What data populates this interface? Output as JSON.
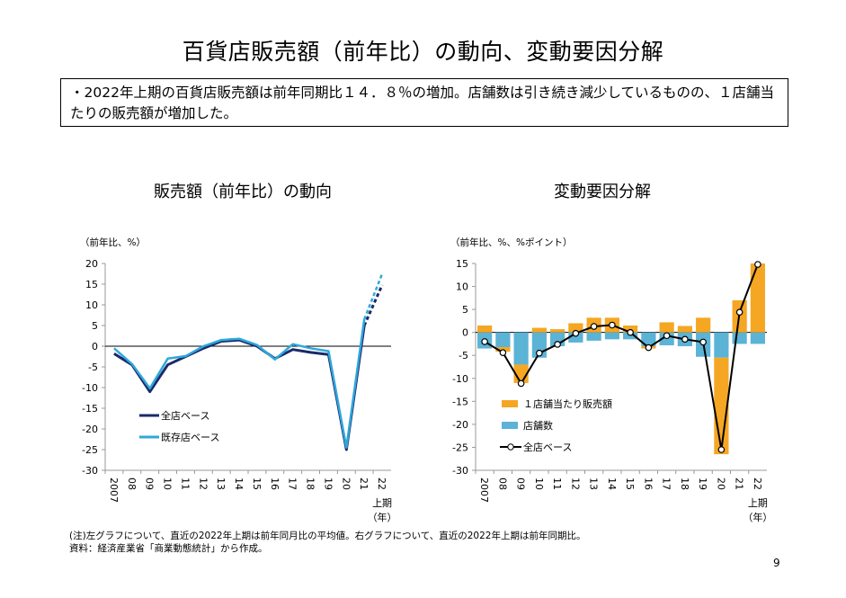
{
  "title": "百貨店販売額（前年比）の動向、変動要因分解",
  "summary": "・2022年上期の百貨店販売額は前年同期比１４．８％の増加。店舗数は引き続き減少しているものの、１店舗当たりの販売額が増加した。",
  "footnote1": "(注)左グラフについて、直近の2022年上期は前年同月比の平均値。右グラフについて、直近の2022年上期は前年同期比。",
  "footnote2": "資料：経済産業省「商業動態統計」から作成。",
  "page_number": "9",
  "colors": {
    "all_store": "#1b2a6b",
    "existing": "#2ea8dc",
    "per_store": "#f5a623",
    "store_count": "#5bb3d6",
    "zero_line": "#000000"
  },
  "chart_data": [
    {
      "type": "line",
      "title": "販売額（前年比）の動向",
      "ylabel": "（前年比、%）",
      "ylim": [
        -30,
        20
      ],
      "yticks": [
        "20",
        "15",
        "10",
        "5",
        "0",
        "-5",
        "-10",
        "-15",
        "-20",
        "-25",
        "-30"
      ],
      "yticks_values": [
        20,
        15,
        10,
        5,
        0,
        -5,
        -10,
        -15,
        -20,
        -25,
        -30
      ],
      "categories": [
        "2007",
        "08",
        "09",
        "10",
        "11",
        "12",
        "13",
        "14",
        "15",
        "16",
        "17",
        "18",
        "19",
        "20",
        "21",
        "22"
      ],
      "xlabel_extra": "上期",
      "xlabel_unit": "（年）",
      "series": [
        {
          "name": "全店ベース",
          "values": [
            -1.8,
            -4.5,
            -11.0,
            -4.5,
            -2.5,
            -0.5,
            1.2,
            1.5,
            0.0,
            -3.0,
            -0.8,
            -1.5,
            -2.0,
            -25.0,
            5.0,
            14.8
          ]
        },
        {
          "name": "既存店ベース",
          "values": [
            -0.5,
            -4.3,
            -10.2,
            -3.0,
            -2.4,
            0.0,
            1.5,
            1.8,
            0.3,
            -3.2,
            0.5,
            -0.5,
            -1.2,
            -24.5,
            6.5,
            17.5
          ]
        }
      ],
      "dashed_segment": "21-22"
    },
    {
      "type": "bar+line",
      "title": "変動要因分解",
      "ylabel": "（前年比、%、%ポイント）",
      "ylim": [
        -30,
        15
      ],
      "yticks": [
        "15",
        "10",
        "5",
        "0",
        "-5",
        "-10",
        "-15",
        "-20",
        "-25",
        "-30"
      ],
      "yticks_values": [
        15,
        10,
        5,
        0,
        -5,
        -10,
        -15,
        -20,
        -25,
        -30
      ],
      "categories": [
        "2007",
        "08",
        "09",
        "10",
        "11",
        "12",
        "13",
        "14",
        "15",
        "16",
        "17",
        "18",
        "19",
        "20",
        "21",
        "22"
      ],
      "xlabel_extra": "上期",
      "xlabel_unit": "（年）",
      "series": [
        {
          "name": "１店舗当たり販売額",
          "kind": "bar",
          "values": [
            1.5,
            -1.0,
            -4.0,
            1.0,
            0.7,
            2.0,
            3.2,
            3.2,
            1.5,
            -0.5,
            2.2,
            1.4,
            3.2,
            -21.0,
            7.0,
            15.0
          ]
        },
        {
          "name": "店舗数",
          "kind": "bar",
          "values": [
            -3.5,
            -3.2,
            -7.0,
            -5.5,
            -3.0,
            -2.2,
            -1.8,
            -1.5,
            -1.5,
            -3.0,
            -2.8,
            -3.0,
            -5.3,
            -5.5,
            -2.5,
            -2.5
          ]
        },
        {
          "name": "全店ベース",
          "kind": "line",
          "values": [
            -2.0,
            -4.4,
            -11.1,
            -4.5,
            -2.6,
            -0.2,
            1.3,
            1.6,
            0.0,
            -3.3,
            -0.7,
            -1.5,
            -2.1,
            -25.5,
            4.4,
            14.8
          ]
        }
      ]
    }
  ]
}
